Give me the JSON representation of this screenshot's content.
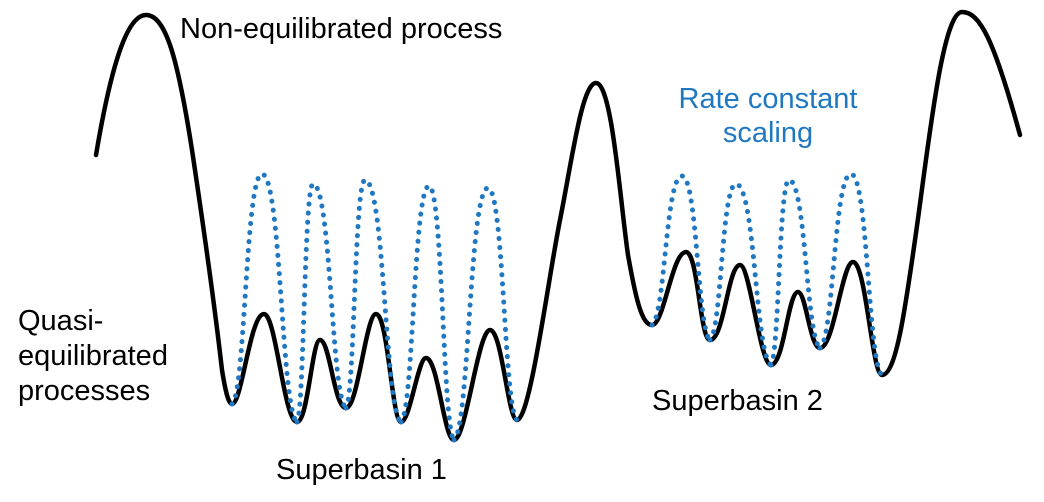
{
  "labels": {
    "non_equilibrated": "Non-equilibrated process",
    "quasi_line1": "Quasi-",
    "quasi_line2": "equilibrated",
    "quasi_line3": "processes",
    "rate_line1": "Rate constant",
    "rate_line2": "scaling",
    "superbasin1": "Superbasin 1",
    "superbasin2": "Superbasin 2"
  },
  "colors": {
    "landscape": "#000000",
    "scaled": "#1f78c1"
  }
}
